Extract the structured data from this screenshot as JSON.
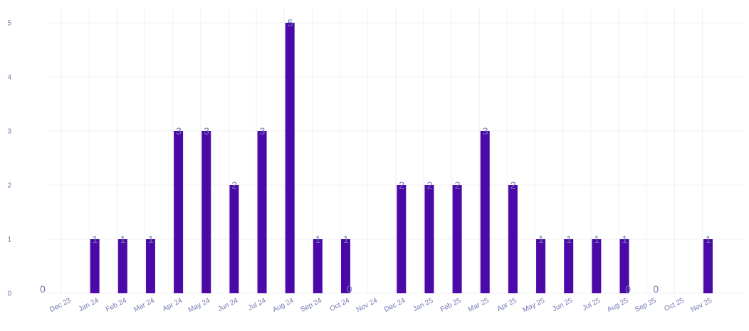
{
  "chart_data": {
    "type": "bar",
    "categories": [
      "Dec 23",
      "Jan 24",
      "Feb 24",
      "Mar 24",
      "Apr 24",
      "May 24",
      "Jun 24",
      "Jul 24",
      "Aug 24",
      "Sep 24",
      "Oct 24",
      "Nov 24",
      "Dec 24",
      "Jan 25",
      "Feb 25",
      "Mar 25",
      "Apr 25",
      "May 25",
      "Jun 25",
      "Jul 25",
      "Aug 25",
      "Sep 25",
      "Oct 25",
      "Nov 25"
    ],
    "values": [
      0,
      1,
      1,
      1,
      3,
      3,
      2,
      3,
      5,
      1,
      1,
      0,
      2,
      2,
      2,
      3,
      2,
      1,
      1,
      1,
      1,
      0,
      0,
      1
    ],
    "ylim": [
      0,
      5
    ],
    "yticks": [
      0,
      1,
      2,
      3,
      4,
      5
    ],
    "grid": true,
    "bar_color": "#4b0aa8",
    "label_color": "#7279b2",
    "axis_text_color": "#7279b2",
    "grid_color": "#f0f0f0"
  }
}
